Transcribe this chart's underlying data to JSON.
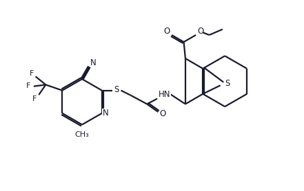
{
  "background_color": "#ffffff",
  "line_color": "#1a1a2e",
  "line_width": 1.6,
  "font_size": 8.5,
  "figsize": [
    4.41,
    2.78
  ],
  "dpi": 100,
  "xlim": [
    0,
    9.0
  ],
  "ylim": [
    0,
    6.0
  ]
}
